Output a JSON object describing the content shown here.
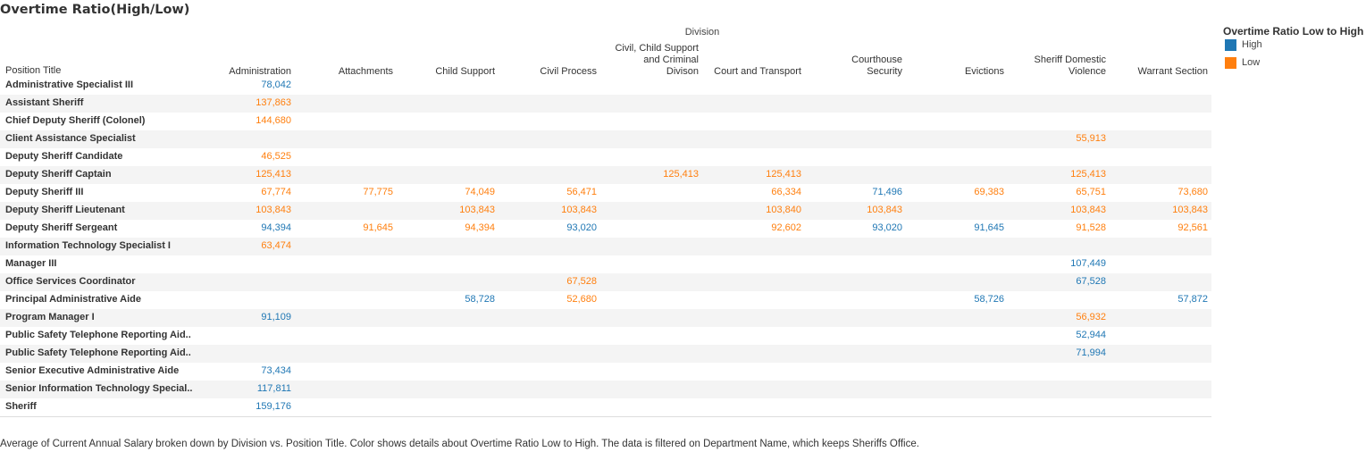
{
  "title": "Overtime Ratio(High/Low)",
  "caption": "Average of Current Annual Salary broken down by Division vs. Position Title.  Color shows details about Overtime Ratio Low to High. The data is filtered on Department Name, which keeps Sheriffs Office.",
  "legend": {
    "title": "Overtime Ratio Low to High",
    "items": [
      {
        "label": "High",
        "color": "#1f77b4"
      },
      {
        "label": "Low",
        "color": "#ff7f0e"
      }
    ]
  },
  "chart_data": {
    "type": "table",
    "column_group_label": "Division",
    "row_header_label": "Position Title",
    "columns": [
      "Administration",
      "Attachments",
      "Child Support",
      "Civil Process",
      "Civil, Child Support\nand Criminal\nDivison",
      "Court and Transport",
      "Courthouse\nSecurity",
      "Evictions",
      "Sheriff Domestic\nViolence",
      "Warrant Section"
    ],
    "colors": {
      "H": "#1f77b4",
      "L": "#ff7f0e"
    },
    "rows": [
      {
        "label": "Administrative Specialist III",
        "cells": [
          {
            "col": 0,
            "value": "78,042",
            "ratio": "H"
          }
        ]
      },
      {
        "label": "Assistant Sheriff",
        "cells": [
          {
            "col": 0,
            "value": "137,863",
            "ratio": "L"
          }
        ]
      },
      {
        "label": "Chief Deputy Sheriff (Colonel)",
        "cells": [
          {
            "col": 0,
            "value": "144,680",
            "ratio": "L"
          }
        ]
      },
      {
        "label": "Client Assistance Specialist",
        "cells": [
          {
            "col": 8,
            "value": "55,913",
            "ratio": "L"
          }
        ]
      },
      {
        "label": "Deputy Sheriff Candidate",
        "cells": [
          {
            "col": 0,
            "value": "46,525",
            "ratio": "L"
          }
        ]
      },
      {
        "label": "Deputy Sheriff Captain",
        "cells": [
          {
            "col": 0,
            "value": "125,413",
            "ratio": "L"
          },
          {
            "col": 4,
            "value": "125,413",
            "ratio": "L"
          },
          {
            "col": 5,
            "value": "125,413",
            "ratio": "L"
          },
          {
            "col": 8,
            "value": "125,413",
            "ratio": "L"
          }
        ]
      },
      {
        "label": "Deputy Sheriff III",
        "cells": [
          {
            "col": 0,
            "value": "67,774",
            "ratio": "L"
          },
          {
            "col": 1,
            "value": "77,775",
            "ratio": "L"
          },
          {
            "col": 2,
            "value": "74,049",
            "ratio": "L"
          },
          {
            "col": 3,
            "value": "56,471",
            "ratio": "L"
          },
          {
            "col": 5,
            "value": "66,334",
            "ratio": "L"
          },
          {
            "col": 6,
            "value": "71,496",
            "ratio": "H"
          },
          {
            "col": 7,
            "value": "69,383",
            "ratio": "L"
          },
          {
            "col": 8,
            "value": "65,751",
            "ratio": "L"
          },
          {
            "col": 9,
            "value": "73,680",
            "ratio": "L"
          }
        ]
      },
      {
        "label": "Deputy Sheriff Lieutenant",
        "cells": [
          {
            "col": 0,
            "value": "103,843",
            "ratio": "L"
          },
          {
            "col": 2,
            "value": "103,843",
            "ratio": "L"
          },
          {
            "col": 3,
            "value": "103,843",
            "ratio": "L"
          },
          {
            "col": 5,
            "value": "103,840",
            "ratio": "L"
          },
          {
            "col": 6,
            "value": "103,843",
            "ratio": "L"
          },
          {
            "col": 8,
            "value": "103,843",
            "ratio": "L"
          },
          {
            "col": 9,
            "value": "103,843",
            "ratio": "L"
          }
        ]
      },
      {
        "label": "Deputy Sheriff Sergeant",
        "cells": [
          {
            "col": 0,
            "value": "94,394",
            "ratio": "H"
          },
          {
            "col": 1,
            "value": "91,645",
            "ratio": "L"
          },
          {
            "col": 2,
            "value": "94,394",
            "ratio": "L"
          },
          {
            "col": 3,
            "value": "93,020",
            "ratio": "H"
          },
          {
            "col": 5,
            "value": "92,602",
            "ratio": "L"
          },
          {
            "col": 6,
            "value": "93,020",
            "ratio": "H"
          },
          {
            "col": 7,
            "value": "91,645",
            "ratio": "H"
          },
          {
            "col": 8,
            "value": "91,528",
            "ratio": "L"
          },
          {
            "col": 9,
            "value": "92,561",
            "ratio": "L"
          }
        ]
      },
      {
        "label": "Information Technology Specialist I",
        "cells": [
          {
            "col": 0,
            "value": "63,474",
            "ratio": "L"
          }
        ]
      },
      {
        "label": "Manager III",
        "cells": [
          {
            "col": 8,
            "value": "107,449",
            "ratio": "H"
          }
        ]
      },
      {
        "label": "Office Services Coordinator",
        "cells": [
          {
            "col": 3,
            "value": "67,528",
            "ratio": "L"
          },
          {
            "col": 8,
            "value": "67,528",
            "ratio": "H"
          }
        ]
      },
      {
        "label": "Principal Administrative Aide",
        "cells": [
          {
            "col": 2,
            "value": "58,728",
            "ratio": "H"
          },
          {
            "col": 3,
            "value": "52,680",
            "ratio": "L"
          },
          {
            "col": 7,
            "value": "58,726",
            "ratio": "H"
          },
          {
            "col": 9,
            "value": "57,872",
            "ratio": "H"
          }
        ]
      },
      {
        "label": "Program Manager I",
        "cells": [
          {
            "col": 0,
            "value": "91,109",
            "ratio": "H"
          },
          {
            "col": 8,
            "value": "56,932",
            "ratio": "L"
          }
        ]
      },
      {
        "label": "Public Safety Telephone Reporting Aid..",
        "cells": [
          {
            "col": 8,
            "value": "52,944",
            "ratio": "H"
          }
        ]
      },
      {
        "label": "Public Safety Telephone Reporting Aid..",
        "cells": [
          {
            "col": 8,
            "value": "71,994",
            "ratio": "H"
          }
        ]
      },
      {
        "label": "Senior Executive Administrative Aide",
        "cells": [
          {
            "col": 0,
            "value": "73,434",
            "ratio": "H"
          }
        ]
      },
      {
        "label": "Senior Information Technology Special..",
        "cells": [
          {
            "col": 0,
            "value": "117,811",
            "ratio": "H"
          }
        ]
      },
      {
        "label": "Sheriff",
        "cells": [
          {
            "col": 0,
            "value": "159,176",
            "ratio": "H"
          }
        ]
      }
    ]
  }
}
